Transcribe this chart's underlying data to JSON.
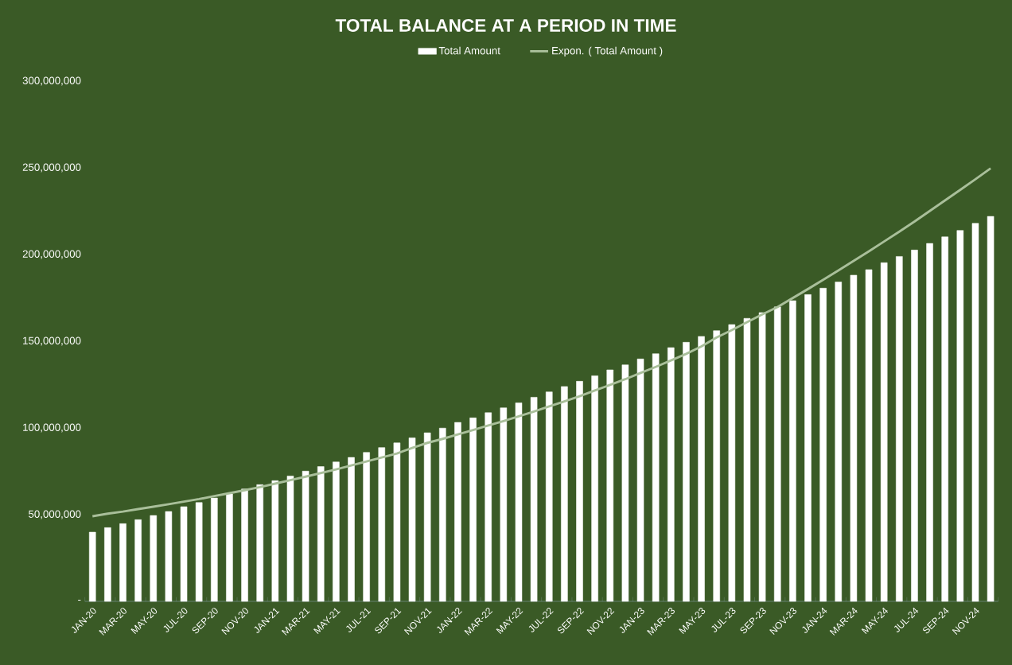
{
  "chart_data": {
    "type": "bar",
    "title": "TOTAL BALANCE AT A PERIOD IN TIME",
    "categories": [
      "JAN-20",
      null,
      "MAR-20",
      null,
      "MAY-20",
      null,
      "JUL-20",
      null,
      "SEP-20",
      null,
      "NOV-20",
      null,
      "JAN-21",
      null,
      "MAR-21",
      null,
      "MAY-21",
      null,
      "JUL-21",
      null,
      "SEP-21",
      null,
      "NOV-21",
      null,
      "JAN-22",
      null,
      "MAR-22",
      null,
      "MAY-22",
      null,
      "JUL-22",
      null,
      "SEP-22",
      null,
      "NOV-22",
      null,
      "JAN-23",
      null,
      "MAR-23",
      null,
      "MAY-23",
      null,
      "JUL-23",
      null,
      "SEP-23",
      null,
      "NOV-23",
      null,
      "JAN-24",
      null,
      "MAR-24",
      null,
      "MAY-24",
      null,
      "JUL-24",
      null,
      "SEP-24",
      null,
      "NOV-24",
      null
    ],
    "series": [
      {
        "name": "Total Amount",
        "color": "#ffffff",
        "values": [
          39900000,
          42500000,
          44800000,
          47100000,
          49500000,
          51800000,
          54600000,
          57000000,
          59600000,
          61900000,
          64800000,
          67300000,
          69600000,
          72300000,
          75100000,
          77700000,
          80400000,
          83000000,
          85900000,
          88700000,
          91400000,
          94300000,
          97200000,
          99900000,
          103200000,
          105800000,
          108800000,
          111600000,
          114500000,
          117700000,
          120800000,
          123900000,
          126900000,
          130100000,
          133500000,
          136400000,
          139800000,
          142800000,
          146300000,
          149400000,
          152800000,
          156100000,
          159600000,
          163200000,
          166500000,
          169800000,
          173400000,
          176900000,
          180600000,
          184200000,
          188100000,
          191300000,
          195300000,
          198900000,
          202600000,
          206400000,
          210200000,
          213900000,
          218000000,
          222000000
        ]
      },
      {
        "name": "Expon. ( Total Amount )",
        "type": "line",
        "color": "#a9bf9a",
        "values": [
          49100000,
          50600000,
          51800000,
          53200000,
          54600000,
          56000000,
          57500000,
          59000000,
          60700000,
          62400000,
          64100000,
          65900000,
          67900000,
          69900000,
          71900000,
          74000000,
          76100000,
          78400000,
          80700000,
          83000000,
          85300000,
          88500000,
          91400000,
          93700000,
          96300000,
          98800000,
          101400000,
          104000000,
          106700000,
          109500000,
          112400000,
          115300000,
          118300000,
          121600000,
          124800000,
          128100000,
          131700000,
          135200000,
          138900000,
          142700000,
          147000000,
          152200000,
          156400000,
          161000000,
          165500000,
          169700000,
          174900000,
          180100000,
          185400000,
          190800000,
          196300000,
          201800000,
          207500000,
          213200000,
          219000000,
          225100000,
          231200000,
          237300000,
          243400000,
          249700000
        ]
      }
    ],
    "ylim": [
      0,
      300000000
    ],
    "yticks": [
      {
        "value": 0,
        "label": "-"
      },
      {
        "value": 50000000,
        "label": "50,000,000"
      },
      {
        "value": 100000000,
        "label": "100,000,000"
      },
      {
        "value": 150000000,
        "label": "150,000,000"
      },
      {
        "value": 200000000,
        "label": "200,000,000"
      },
      {
        "value": 250000000,
        "label": "250,000,000"
      },
      {
        "value": 300000000,
        "label": "300,000,000"
      }
    ],
    "legend": "top",
    "grid": false
  }
}
